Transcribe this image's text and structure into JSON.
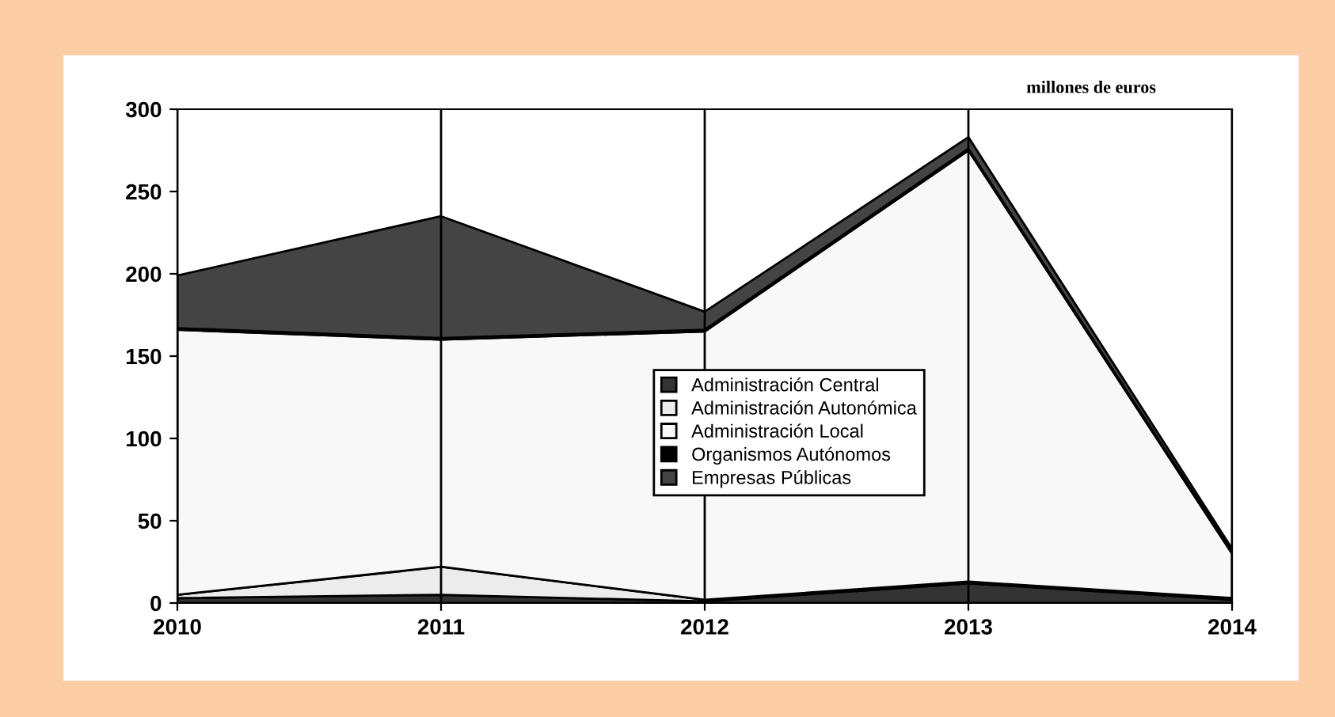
{
  "chart_data": {
    "type": "area",
    "stacked": true,
    "ylabel": "millones de euros",
    "categories": [
      "2010",
      "2011",
      "2012",
      "2013",
      "2014"
    ],
    "series": [
      {
        "name": "Administración Central",
        "color": "#333333",
        "values": [
          3,
          5,
          1,
          12,
          2
        ]
      },
      {
        "name": "Administración Autonómica",
        "color": "#ececec",
        "values": [
          2,
          17,
          1,
          1,
          1
        ]
      },
      {
        "name": "Administración Local",
        "color": "#f8f8f8",
        "values": [
          161,
          138,
          163,
          262,
          27
        ]
      },
      {
        "name": "Organismos Autónomos",
        "color": "#000000",
        "values": [
          1,
          1,
          1,
          1,
          1
        ]
      },
      {
        "name": "Empresas Públicas",
        "color": "#444444",
        "values": [
          32,
          74,
          11,
          7,
          2
        ]
      }
    ],
    "ylim": [
      0,
      300
    ],
    "yticks": [
      0,
      50,
      100,
      150,
      200,
      250,
      300
    ],
    "grid": "x",
    "legend": "center"
  }
}
